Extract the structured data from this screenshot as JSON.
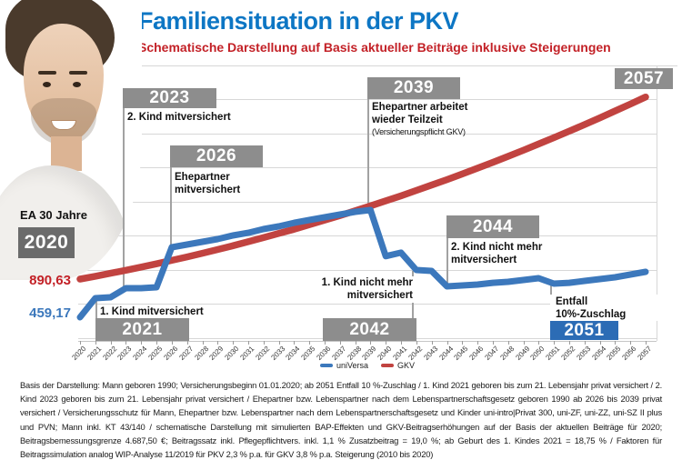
{
  "header": {
    "title": "Familiensituation in der PKV",
    "subtitle": "Schematische Darstellung auf Basis aktueller Beiträge inklusive Steigerungen"
  },
  "chart": {
    "entry_age_label": "EA 30 Jahre",
    "entry_year": "2020",
    "start_value_gkv": "890,63",
    "start_value_universa": "459,17",
    "milestones": {
      "m2021": {
        "year": "2021",
        "label": "1. Kind mitversichert"
      },
      "m2023": {
        "year": "2023",
        "label": "2. Kind mitversichert"
      },
      "m2026": {
        "year": "2026",
        "label_line1": "Ehepartner",
        "label_line2": "mitversichert"
      },
      "m2039": {
        "year": "2039",
        "label_line1": "Ehepartner arbeitet",
        "label_line2": "wieder Teilzeit",
        "sublabel": "(Versicherungspflicht GKV)"
      },
      "m2042": {
        "year": "2042",
        "label_line1": "1. Kind nicht mehr",
        "label_line2": "mitversichert"
      },
      "m2044": {
        "year": "2044",
        "label_line1": "2. Kind nicht mehr",
        "label_line2": "mitversichert"
      },
      "m2051": {
        "year": "2051",
        "label_line1": "Entfall",
        "label_line2": "10%-Zuschlag"
      },
      "m2057": {
        "year": "2057"
      }
    },
    "legend": [
      {
        "name": "uniVersa",
        "color": "#3c78bc"
      },
      {
        "name": "GKV",
        "color": "#c14340"
      }
    ],
    "chart_data": {
      "type": "line",
      "title": "Familiensituation in der PKV",
      "subtitle": "Schematische Darstellung auf Basis aktueller Beiträge inklusive Steigerungen",
      "x": [
        2020,
        2021,
        2022,
        2023,
        2024,
        2025,
        2026,
        2027,
        2028,
        2029,
        2030,
        2031,
        2032,
        2033,
        2034,
        2035,
        2036,
        2037,
        2038,
        2039,
        2040,
        2041,
        2042,
        2043,
        2044,
        2045,
        2046,
        2047,
        2048,
        2049,
        2050,
        2051,
        2052,
        2053,
        2054,
        2055,
        2056,
        2057
      ],
      "unit": "EUR pro Monat (geschätzt, schematische Darstellung ohne Y-Achse)",
      "known_values": {
        "universa_2020": "459,17",
        "gkv_2020": "890,63"
      },
      "series": [
        {
          "name": "uniVersa",
          "color": "#3c78bc",
          "values": [
            459,
            675,
            685,
            788,
            788,
            798,
            1250,
            1281,
            1312,
            1343,
            1384,
            1414,
            1456,
            1486,
            1527,
            1558,
            1589,
            1620,
            1651,
            1671,
            1150,
            1190,
            993,
            983,
            808,
            819,
            829,
            849,
            860,
            880,
            901,
            839,
            849,
            870,
            891,
            911,
            942,
            973
          ]
        },
        {
          "name": "GKV",
          "color": "#c14340",
          "values": [
            891,
            922,
            956,
            990,
            1026,
            1063,
            1102,
            1141,
            1182,
            1224,
            1268,
            1313,
            1359,
            1406,
            1454,
            1505,
            1556,
            1608,
            1663,
            1718,
            1775,
            1832,
            1892,
            1953,
            2015,
            2078,
            2144,
            2210,
            2277,
            2346,
            2417,
            2489,
            2562,
            2636,
            2712,
            2790,
            2868,
            2948
          ]
        }
      ],
      "annotations": [
        {
          "year": 2021,
          "text": "1. Kind mitversichert"
        },
        {
          "year": 2023,
          "text": "2. Kind mitversichert"
        },
        {
          "year": 2026,
          "text": "Ehepartner mitversichert"
        },
        {
          "year": 2039,
          "text": "Ehepartner arbeitet wieder Teilzeit (Versicherungspflicht GKV)"
        },
        {
          "year": 2042,
          "text": "1. Kind nicht mehr mitversichert"
        },
        {
          "year": 2044,
          "text": "2. Kind nicht mehr mitversichert"
        },
        {
          "year": 2051,
          "text": "Entfall 10%-Zuschlag"
        },
        {
          "year": 2057,
          "text": ""
        }
      ],
      "legend_position": "bottom",
      "grid": "horizontal",
      "xlim": [
        2020,
        2057
      ]
    }
  },
  "footnote": "Basis der Darstellung: Mann geboren 1990; Versicherungsbeginn 01.01.2020; ab 2051 Entfall 10 %-Zuschlag / 1. Kind 2021 geboren bis zum 21. Lebensjahr privat versichert / 2. Kind 2023 geboren bis zum 21. Lebensjahr privat versichert / Ehepartner bzw. Lebenspartner nach dem Lebenspartnerschaftsgesetz geboren 1990 ab 2026 bis 2039 privat versichert / Versicherungsschutz für Mann, Ehepartner bzw. Lebenspartner nach dem Lebenspartnerschaftsgesetz und Kinder uni-intro|Privat 300, uni-ZF, uni-ZZ, uni-SZ II plus und PVN; Mann inkl. KT 43/140 / schematische Darstellung mit simulierten BAP-Effekten und GKV-Beitragserhöhungen auf der Basis der aktuellen Beiträge für 2020; Beitragsbemessungsgrenze 4.687,50 €; Beitragssatz inkl. Pflegepflichtvers. inkl. 1,1 % Zusatzbeitrag = 19,0 %; ab Geburt des 1. Kindes 2021 = 18,75 % / Faktoren für Beitragssimulation analog WIP-Analyse 11/2019 für PKV 2,3 % p.a. für GKV 3,8 % p.a. Steigerung (2010 bis 2020)"
}
